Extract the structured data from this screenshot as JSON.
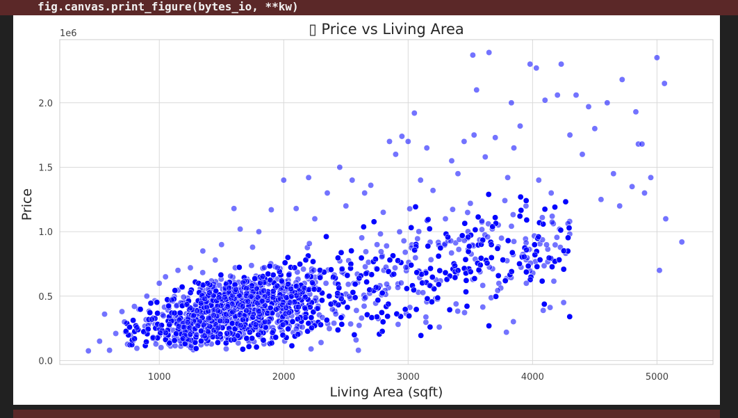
{
  "code": {
    "line": "fig.canvas.print_figure(bytes_io, **kw)"
  },
  "colors": {
    "background": "#212121",
    "error_strip": "#5b2828",
    "point_fill": "#0000ff",
    "point_edge": "#ffffff",
    "grid": "#d9d9d9"
  },
  "chart_data": {
    "type": "scatter",
    "title": "▯ Price vs Living Area",
    "xlabel": "Living Area (sqft)",
    "ylabel": "Price",
    "y_offset_label": "1e6",
    "xlim": [
      200,
      5450
    ],
    "ylim": [
      -30000,
      2490000
    ],
    "xticks": [
      1000,
      2000,
      3000,
      4000,
      5000
    ],
    "xtick_labels": [
      "1000",
      "2000",
      "3000",
      "4000",
      "5000"
    ],
    "yticks": [
      0,
      500000,
      1000000,
      1500000,
      2000000
    ],
    "ytick_labels": [
      "0.0",
      "0.5",
      "1.0",
      "1.5",
      "2.0"
    ],
    "grid": true,
    "marker_alpha": 0.55,
    "point_count_estimate": 4500,
    "series": [
      {
        "points": [
          [
            430,
            75000
          ],
          [
            520,
            150000
          ],
          [
            560,
            360000
          ],
          [
            600,
            80000
          ],
          [
            650,
            210000
          ],
          [
            700,
            380000
          ],
          [
            720,
            300000
          ],
          [
            760,
            260000
          ],
          [
            800,
            420000
          ],
          [
            820,
            95000
          ],
          [
            900,
            500000
          ],
          [
            950,
            180000
          ],
          [
            1000,
            600000
          ],
          [
            1050,
            650000
          ],
          [
            1100,
            470000
          ],
          [
            1150,
            700000
          ],
          [
            1200,
            260000
          ],
          [
            1250,
            720000
          ],
          [
            1300,
            200000
          ],
          [
            1350,
            850000
          ],
          [
            1400,
            330000
          ],
          [
            1450,
            780000
          ],
          [
            1500,
            900000
          ],
          [
            1550,
            420000
          ],
          [
            1600,
            1180000
          ],
          [
            1650,
            1020000
          ],
          [
            1700,
            560000
          ],
          [
            1750,
            880000
          ],
          [
            1800,
            1000000
          ],
          [
            1850,
            300000
          ],
          [
            1900,
            1170000
          ],
          [
            1950,
            720000
          ],
          [
            2000,
            1400000
          ],
          [
            2050,
            450000
          ],
          [
            2100,
            1180000
          ],
          [
            2150,
            260000
          ],
          [
            2200,
            1420000
          ],
          [
            2250,
            1100000
          ],
          [
            2300,
            140000
          ],
          [
            2350,
            1300000
          ],
          [
            2400,
            650000
          ],
          [
            2450,
            1500000
          ],
          [
            2500,
            1200000
          ],
          [
            2550,
            1400000
          ],
          [
            2600,
            80000
          ],
          [
            2650,
            1300000
          ],
          [
            2700,
            1360000
          ],
          [
            2750,
            900000
          ],
          [
            2800,
            1150000
          ],
          [
            2850,
            1700000
          ],
          [
            2900,
            1600000
          ],
          [
            2950,
            1740000
          ],
          [
            3000,
            1700000
          ],
          [
            3050,
            1920000
          ],
          [
            3100,
            1400000
          ],
          [
            3150,
            1650000
          ],
          [
            3200,
            1320000
          ],
          [
            3250,
            260000
          ],
          [
            3300,
            1100000
          ],
          [
            3350,
            1550000
          ],
          [
            3400,
            1450000
          ],
          [
            3450,
            1700000
          ],
          [
            3500,
            1220000
          ],
          [
            3530,
            1750000
          ],
          [
            3550,
            2100000
          ],
          [
            3520,
            2370000
          ],
          [
            3620,
            1580000
          ],
          [
            3650,
            2390000
          ],
          [
            3700,
            1730000
          ],
          [
            3750,
            950000
          ],
          [
            3800,
            1420000
          ],
          [
            3830,
            2000000
          ],
          [
            3850,
            1650000
          ],
          [
            3900,
            1820000
          ],
          [
            3950,
            600000
          ],
          [
            3980,
            2300000
          ],
          [
            4030,
            2270000
          ],
          [
            4050,
            1400000
          ],
          [
            4100,
            2020000
          ],
          [
            4150,
            1300000
          ],
          [
            4200,
            2060000
          ],
          [
            4230,
            2300000
          ],
          [
            4250,
            450000
          ],
          [
            4300,
            1750000
          ],
          [
            4350,
            2060000
          ],
          [
            4400,
            1600000
          ],
          [
            4450,
            1970000
          ],
          [
            4500,
            1800000
          ],
          [
            4550,
            1250000
          ],
          [
            4600,
            2000000
          ],
          [
            4650,
            1450000
          ],
          [
            4700,
            1200000
          ],
          [
            4720,
            2180000
          ],
          [
            4800,
            1350000
          ],
          [
            4830,
            1930000
          ],
          [
            4850,
            1680000
          ],
          [
            4880,
            1680000
          ],
          [
            4900,
            1300000
          ],
          [
            4950,
            1420000
          ],
          [
            5000,
            2350000
          ],
          [
            5020,
            700000
          ],
          [
            5060,
            2150000
          ],
          [
            5070,
            1100000
          ],
          [
            5200,
            920000
          ]
        ]
      }
    ]
  }
}
